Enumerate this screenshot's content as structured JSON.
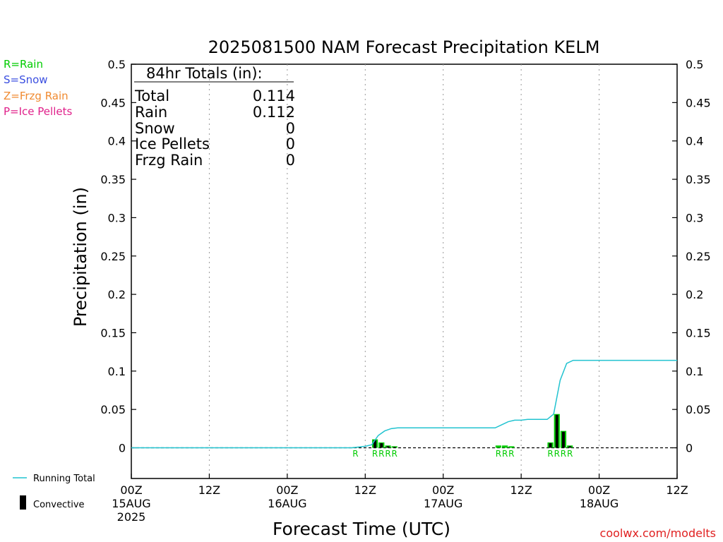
{
  "title": "2025081500 NAM Forecast Precipitation KELM",
  "ylabel": "Precipitation (in)",
  "xlabel": "Forecast Time (UTC)",
  "watermark": "coolwx.com/modelts",
  "ptype_legend": [
    {
      "text": "R=Rain",
      "color": "#00cc00"
    },
    {
      "text": "S=Snow",
      "color": "#3b4fe0"
    },
    {
      "text": "Z=Frzg Rain",
      "color": "#f08a30"
    },
    {
      "text": "P=Ice Pellets",
      "color": "#e0208a"
    }
  ],
  "series_legend": {
    "running_total": "Running Total",
    "convective": "Convective"
  },
  "totals": {
    "heading": "84hr Totals (in):",
    "rows": [
      {
        "label": "Total",
        "value": "0.114"
      },
      {
        "label": "Rain",
        "value": "0.112"
      },
      {
        "label": "Snow",
        "value": "0"
      },
      {
        "label": "Ice Pellets",
        "value": "0"
      },
      {
        "label": "Frzg Rain",
        "value": "0"
      }
    ]
  },
  "colors": {
    "rain": "#00cc00",
    "running_total": "#22c3d0",
    "convective": "#000000",
    "watermark": "#e02020"
  },
  "chart_data": {
    "type": "bar",
    "x_unit": "forecast hour",
    "xlim": [
      0,
      84
    ],
    "ylim": [
      -0.04,
      0.5
    ],
    "yticks": [
      "0",
      "0.05",
      "0.1",
      "0.15",
      "0.2",
      "0.25",
      "0.3",
      "0.35",
      "0.4",
      "0.45",
      "0.5"
    ],
    "xticks": [
      {
        "hour": 0,
        "label": [
          "00Z",
          "15AUG",
          "2025"
        ]
      },
      {
        "hour": 12,
        "label": [
          "12Z"
        ]
      },
      {
        "hour": 24,
        "label": [
          "00Z",
          "16AUG"
        ]
      },
      {
        "hour": 36,
        "label": [
          "12Z"
        ]
      },
      {
        "hour": 48,
        "label": [
          "00Z",
          "17AUG"
        ]
      },
      {
        "hour": 60,
        "label": [
          "12Z"
        ]
      },
      {
        "hour": 72,
        "label": [
          "00Z",
          "18AUG"
        ]
      },
      {
        "hour": 84,
        "label": [
          "12Z"
        ]
      }
    ],
    "grid": "vertical dotted at 12-hour ticks",
    "precip_bars": [
      {
        "hour": 35,
        "total": 0.001,
        "convective": 0
      },
      {
        "hour": 38,
        "total": 0.011,
        "convective": 0.01
      },
      {
        "hour": 39,
        "total": 0.007,
        "convective": 0.006
      },
      {
        "hour": 40,
        "total": 0.003,
        "convective": 0.002
      },
      {
        "hour": 41,
        "total": 0.002,
        "convective": 0.001
      },
      {
        "hour": 57,
        "total": 0.003,
        "convective": 0
      },
      {
        "hour": 58,
        "total": 0.003,
        "convective": 0
      },
      {
        "hour": 59,
        "total": 0.002,
        "convective": 0
      },
      {
        "hour": 65,
        "total": 0.007,
        "convective": 0.006
      },
      {
        "hour": 66,
        "total": 0.044,
        "convective": 0.043
      },
      {
        "hour": 67,
        "total": 0.022,
        "convective": 0.021
      },
      {
        "hour": 68,
        "total": 0.003,
        "convective": 0.002
      }
    ],
    "series": [
      {
        "name": "Running Total",
        "x": [
          0,
          34,
          35,
          36,
          37,
          38,
          39,
          40,
          41,
          42,
          48,
          54,
          56,
          57,
          58,
          59,
          60,
          61,
          62,
          63,
          64,
          65,
          66,
          67,
          68,
          69,
          84
        ],
        "y": [
          0,
          0,
          0.001,
          0.002,
          0.004,
          0.016,
          0.022,
          0.025,
          0.026,
          0.026,
          0.026,
          0.026,
          0.026,
          0.03,
          0.034,
          0.036,
          0.036,
          0.037,
          0.037,
          0.037,
          0.037,
          0.044,
          0.088,
          0.11,
          0.114,
          0.114,
          0.114
        ]
      }
    ],
    "ptype_markers": [
      {
        "hour": 35,
        "label": "R"
      },
      {
        "hour": 38,
        "label": "R"
      },
      {
        "hour": 39,
        "label": "R"
      },
      {
        "hour": 40,
        "label": "R"
      },
      {
        "hour": 41,
        "label": "R"
      },
      {
        "hour": 57,
        "label": "R"
      },
      {
        "hour": 58,
        "label": "R"
      },
      {
        "hour": 59,
        "label": "R"
      },
      {
        "hour": 65,
        "label": "R"
      },
      {
        "hour": 66,
        "label": "R"
      },
      {
        "hour": 67,
        "label": "R"
      },
      {
        "hour": 68,
        "label": "R"
      }
    ]
  }
}
